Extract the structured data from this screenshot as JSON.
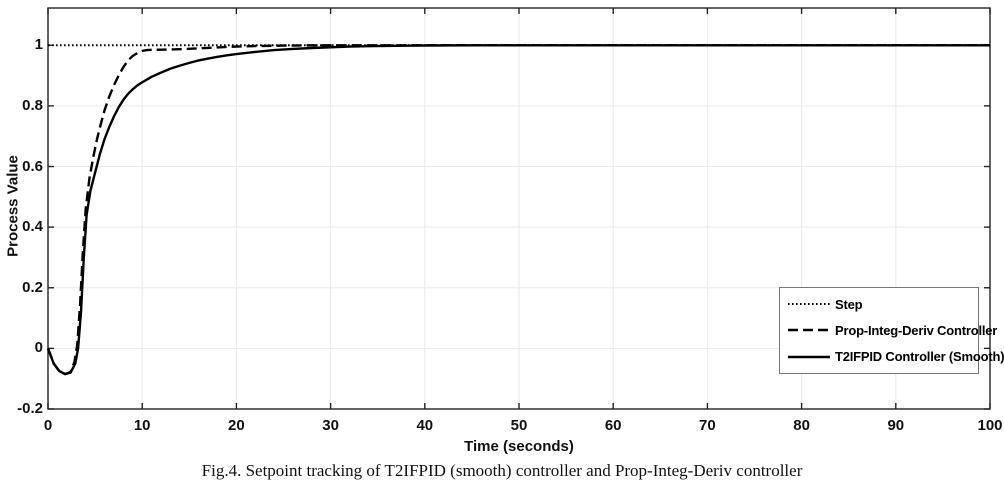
{
  "figure": {
    "caption": "Fig.4. Setpoint tracking of T2IFPID (smooth) controller and Prop-Integ-Deriv controller"
  },
  "chart_data": {
    "type": "line",
    "title": "",
    "xlabel": "Time (seconds)",
    "ylabel": "Process Value",
    "xlim": [
      0,
      100
    ],
    "ylim": [
      -0.2,
      1.123
    ],
    "grid": true,
    "legend_position": "lower right",
    "colors": {
      "line": "#000000",
      "grid": "#e9e9e9",
      "axis": "#222222",
      "background": "#ffffff"
    },
    "xticks": [
      "0",
      "10",
      "20",
      "30",
      "40",
      "50",
      "60",
      "70",
      "80",
      "90",
      "100"
    ],
    "yticks": [
      "1",
      "0.8",
      "0.6",
      "0.4",
      "0.2",
      "0",
      "-0.2"
    ],
    "series": [
      {
        "name": "Step",
        "style": "dotted",
        "points": [
          [
            0,
            1
          ],
          [
            100,
            1
          ]
        ]
      },
      {
        "name": "Prop-Integ-Deriv Controller",
        "style": "dashed",
        "points": [
          [
            0,
            0
          ],
          [
            0.6,
            -0.05
          ],
          [
            1.2,
            -0.075
          ],
          [
            1.8,
            -0.085
          ],
          [
            2.4,
            -0.078
          ],
          [
            2.8,
            -0.045
          ],
          [
            3.1,
            0.01
          ],
          [
            3.4,
            0.14
          ],
          [
            3.7,
            0.32
          ],
          [
            4,
            0.46
          ],
          [
            4.4,
            0.56
          ],
          [
            4.8,
            0.63
          ],
          [
            5.2,
            0.69
          ],
          [
            5.6,
            0.74
          ],
          [
            6,
            0.785
          ],
          [
            6.5,
            0.83
          ],
          [
            7,
            0.868
          ],
          [
            7.5,
            0.9
          ],
          [
            8,
            0.928
          ],
          [
            8.5,
            0.95
          ],
          [
            9,
            0.965
          ],
          [
            9.5,
            0.975
          ],
          [
            10,
            0.981
          ],
          [
            10.5,
            0.984
          ],
          [
            11,
            0.985
          ],
          [
            12,
            0.9855
          ],
          [
            13,
            0.986
          ],
          [
            14,
            0.987
          ],
          [
            15,
            0.9885
          ],
          [
            16,
            0.99
          ],
          [
            17,
            0.9915
          ],
          [
            18,
            0.993
          ],
          [
            19,
            0.9945
          ],
          [
            20,
            0.9955
          ],
          [
            21,
            0.9965
          ],
          [
            22,
            0.9975
          ],
          [
            23,
            0.998
          ],
          [
            24,
            0.9985
          ],
          [
            25,
            0.999
          ],
          [
            27,
            0.9995
          ],
          [
            30,
            1
          ],
          [
            100,
            1
          ]
        ]
      },
      {
        "name": "T2IFPID Controller (Smooth)",
        "style": "solid",
        "points": [
          [
            0,
            0
          ],
          [
            0.6,
            -0.05
          ],
          [
            1.2,
            -0.075
          ],
          [
            1.8,
            -0.085
          ],
          [
            2.4,
            -0.08
          ],
          [
            2.9,
            -0.05
          ],
          [
            3.2,
            0
          ],
          [
            3.5,
            0.12
          ],
          [
            3.8,
            0.3
          ],
          [
            4.1,
            0.44
          ],
          [
            4.5,
            0.52
          ],
          [
            5,
            0.58
          ],
          [
            5.5,
            0.64
          ],
          [
            6,
            0.69
          ],
          [
            6.5,
            0.73
          ],
          [
            7,
            0.765
          ],
          [
            7.5,
            0.795
          ],
          [
            8,
            0.82
          ],
          [
            8.5,
            0.84
          ],
          [
            9,
            0.855
          ],
          [
            9.5,
            0.868
          ],
          [
            10,
            0.878
          ],
          [
            11,
            0.896
          ],
          [
            12,
            0.91
          ],
          [
            13,
            0.923
          ],
          [
            14,
            0.933
          ],
          [
            15,
            0.942
          ],
          [
            16,
            0.95
          ],
          [
            17,
            0.956
          ],
          [
            18,
            0.962
          ],
          [
            19,
            0.967
          ],
          [
            20,
            0.971
          ],
          [
            22,
            0.978
          ],
          [
            24,
            0.984
          ],
          [
            26,
            0.988
          ],
          [
            28,
            0.991
          ],
          [
            30,
            0.9935
          ],
          [
            32,
            0.9955
          ],
          [
            34,
            0.997
          ],
          [
            36,
            0.998
          ],
          [
            38,
            0.9987
          ],
          [
            40,
            0.9992
          ],
          [
            45,
            0.9998
          ],
          [
            50,
            1
          ],
          [
            100,
            1
          ]
        ]
      }
    ]
  }
}
